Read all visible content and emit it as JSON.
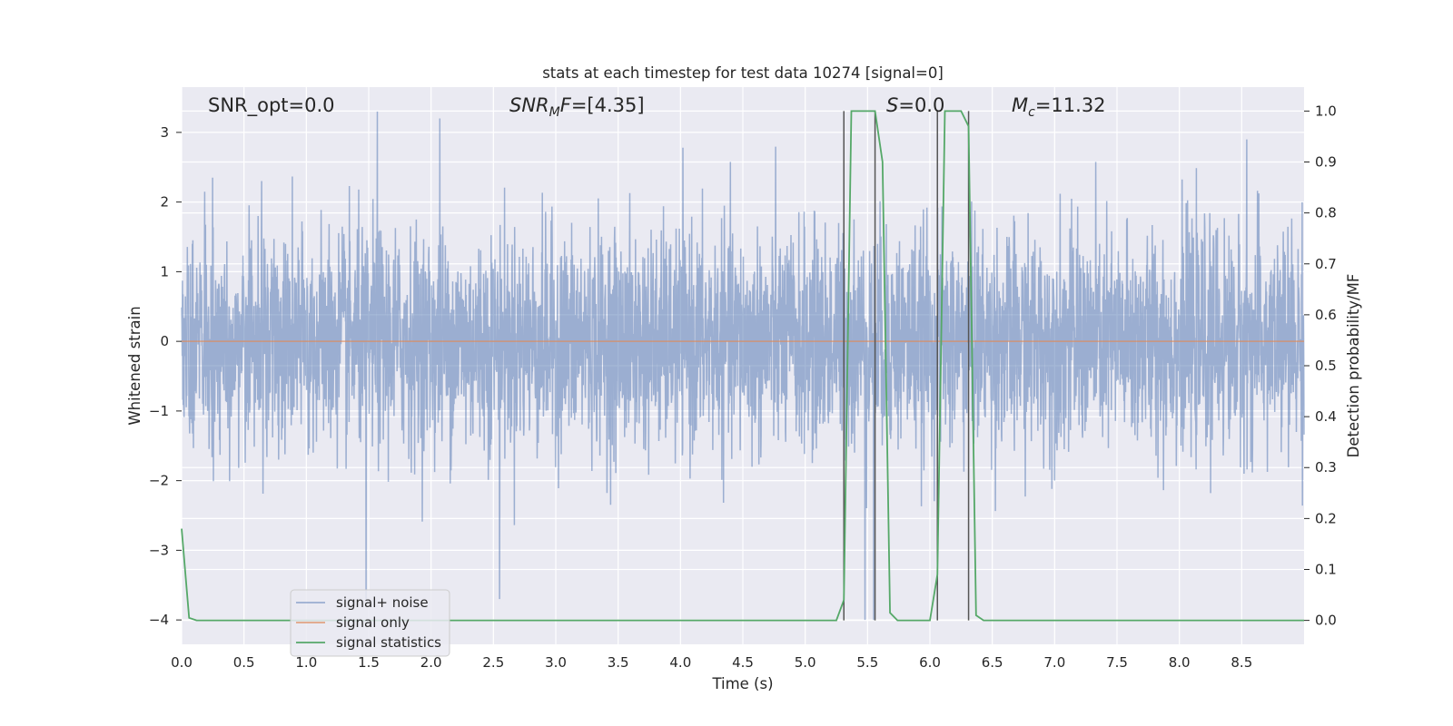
{
  "chart_data": {
    "type": "line",
    "title": "stats at each timestep for test data 10274 [signal=0]",
    "xlabel": "Time (s)",
    "ylabel": "Whitened strain",
    "y2label": "Detection probability/MF",
    "xlim": [
      0.0,
      9.0
    ],
    "ylim": [
      -4.35,
      3.65
    ],
    "y2lim": [
      -0.047,
      1.047
    ],
    "xticks": [
      "0.0",
      "0.5",
      "1.0",
      "1.5",
      "2.0",
      "2.5",
      "3.0",
      "3.5",
      "4.0",
      "4.5",
      "5.0",
      "5.5",
      "6.0",
      "6.5",
      "7.0",
      "7.5",
      "8.0",
      "8.5"
    ],
    "yticks": [
      "3",
      "2",
      "1",
      "0",
      "−1",
      "−2",
      "−3",
      "−4"
    ],
    "y2ticks": [
      "1.0",
      "0.9",
      "0.8",
      "0.7",
      "0.6",
      "0.5",
      "0.4",
      "0.3",
      "0.2",
      "0.1",
      "0.0"
    ],
    "grid": true,
    "annotations": [
      {
        "prefix": "SNR_opt=0.0",
        "sub": "",
        "suffix": ""
      },
      {
        "prefix": "SNR",
        "sub": "M",
        "suffix": "F=[4.35]"
      },
      {
        "prefix": "S",
        "sub": "",
        "suffix": "=0.0"
      },
      {
        "prefix": "M",
        "sub": "c",
        "suffix": "=11.32"
      }
    ],
    "legend": {
      "placement": "lower-left",
      "entries": [
        "signal+ noise",
        "signal only",
        "signal statistics"
      ]
    },
    "colors": {
      "noise": "#4c72b0",
      "signal": "#dd8452",
      "stats": "#55a868",
      "vlines": "#555555",
      "background": "#eaeaf2",
      "grid": "#ffffff"
    },
    "series": [
      {
        "name": "signal+ noise",
        "axis": "left",
        "description_values": "whitened noise, approx N(0,1) per sample over t in [0, 9]",
        "amplitude_envelope": {
          "typical_max": 2.4,
          "typical_min": -2.4,
          "peak_max": 3.3,
          "peak_min": -4.0
        },
        "notable_peaks": [
          {
            "x": 1.48,
            "y": -3.7
          },
          {
            "x": 1.57,
            "y": 3.3
          },
          {
            "x": 2.07,
            "y": 3.2
          },
          {
            "x": 2.55,
            "y": -3.7
          },
          {
            "x": 5.48,
            "y": -4.0
          },
          {
            "x": 5.55,
            "y": -4.0
          },
          {
            "x": 8.54,
            "y": 2.9
          }
        ]
      },
      {
        "name": "signal only",
        "axis": "left",
        "x": [
          0.0,
          9.0
        ],
        "y": [
          0.0,
          0.0
        ]
      },
      {
        "name": "signal statistics",
        "axis": "right",
        "x": [
          0.0,
          0.06,
          0.12,
          5.25,
          5.31,
          5.37,
          5.43,
          5.5,
          5.56,
          5.62,
          5.68,
          5.74,
          6.0,
          6.06,
          6.12,
          6.18,
          6.25,
          6.31,
          6.37,
          6.43,
          9.0
        ],
        "y": [
          0.18,
          0.005,
          0.0,
          0.0,
          0.04,
          1.0,
          1.0,
          1.0,
          1.0,
          0.9,
          0.015,
          0.0,
          0.0,
          0.09,
          1.0,
          1.0,
          1.0,
          0.97,
          0.01,
          0.0,
          0.0
        ]
      }
    ],
    "vertical_lines_x": [
      5.31,
      5.56,
      6.06,
      6.31
    ]
  }
}
